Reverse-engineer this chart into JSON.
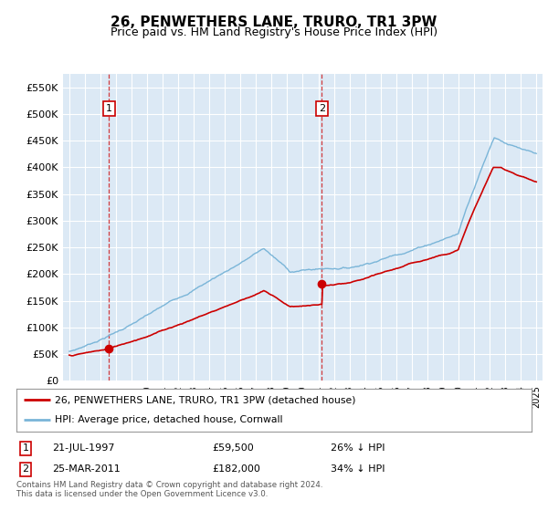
{
  "title": "26, PENWETHERS LANE, TRURO, TR1 3PW",
  "subtitle": "Price paid vs. HM Land Registry's House Price Index (HPI)",
  "hpi_label": "HPI: Average price, detached house, Cornwall",
  "property_label": "26, PENWETHERS LANE, TRURO, TR1 3PW (detached house)",
  "sale1_date": "21-JUL-1997",
  "sale1_price": 59500,
  "sale1_note": "26% ↓ HPI",
  "sale2_date": "25-MAR-2011",
  "sale2_price": 182000,
  "sale2_note": "34% ↓ HPI",
  "sale1_year": 1997.55,
  "sale2_year": 2011.23,
  "ylim": [
    0,
    575000
  ],
  "yticks": [
    0,
    50000,
    100000,
    150000,
    200000,
    250000,
    300000,
    350000,
    400000,
    450000,
    500000,
    550000
  ],
  "plot_bg": "#dce9f5",
  "hpi_color": "#7ab5d8",
  "property_color": "#cc0000",
  "grid_color": "#ffffff",
  "ann_box_color": "#cc0000",
  "footer_text": "Contains HM Land Registry data © Crown copyright and database right 2024.\nThis data is licensed under the Open Government Licence v3.0.",
  "title_fontsize": 11,
  "subtitle_fontsize": 9
}
